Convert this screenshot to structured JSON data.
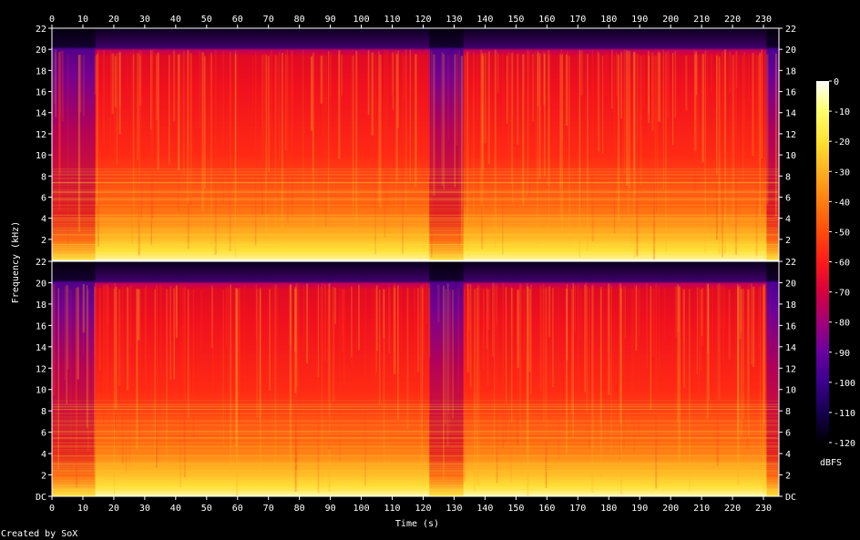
{
  "chart_data": {
    "type": "heatmap",
    "xlabel": "Time (s)",
    "ylabel": "Frequency (kHz)",
    "colorbar_label": "dBFS",
    "footer": "Created by SoX",
    "x_ticks": [
      "0",
      "10",
      "20",
      "30",
      "40",
      "50",
      "60",
      "70",
      "80",
      "90",
      "100",
      "110",
      "120",
      "130",
      "140",
      "150",
      "160",
      "170",
      "180",
      "190",
      "200",
      "210",
      "220",
      "230"
    ],
    "x_range": [
      0,
      235
    ],
    "channels": [
      {
        "name": "",
        "y_ticks": [
          "22",
          "20",
          "18",
          "16",
          "14",
          "12",
          "10",
          "8",
          "6",
          "4",
          "2"
        ],
        "y_range": [
          0,
          22
        ]
      },
      {
        "name": "",
        "y_ticks": [
          "22",
          "20",
          "18",
          "16",
          "14",
          "12",
          "10",
          "8",
          "6",
          "4",
          "2",
          "DC"
        ],
        "y_range": [
          0,
          22
        ]
      }
    ],
    "colorbar": {
      "range": [
        -120,
        0
      ],
      "ticks": [
        "0",
        "-10",
        "-20",
        "-30",
        "-40",
        "-50",
        "-60",
        "-70",
        "-80",
        "-90",
        "-100",
        "-110",
        "-120"
      ],
      "colors": [
        "#ffffff",
        "#ffff70",
        "#ffe030",
        "#ffb020",
        "#ff8010",
        "#ff4a0a",
        "#ff1a1a",
        "#d8003c",
        "#a0007a",
        "#6a00a0",
        "#3c0090",
        "#14004a",
        "#000000"
      ]
    },
    "content_cutoff_khz": 20,
    "quiet_segments_s": [
      [
        0,
        14
      ],
      [
        122,
        133
      ]
    ]
  }
}
